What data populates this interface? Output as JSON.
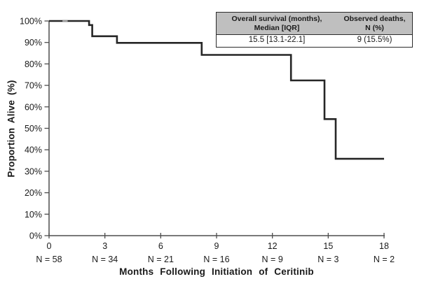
{
  "colors": {
    "curve": "#262626",
    "axis": "#4d4d4d",
    "text": "#1a1a1a",
    "censor": "#9a9a9a",
    "table_header_bg": "#bfbfbf",
    "table_border": "#2b2b2b"
  },
  "chart_data": {
    "type": "line",
    "subtype": "kaplan-meier-step",
    "title": "",
    "xlabel": "Months Following Initiation of Ceritinib",
    "ylabel": "Proportion Alive (%)",
    "xlim": [
      0,
      18
    ],
    "ylim": [
      0,
      100
    ],
    "grid": false,
    "x_ticks": [
      {
        "v": 0,
        "label": "0"
      },
      {
        "v": 3,
        "label": "3"
      },
      {
        "v": 6,
        "label": "6"
      },
      {
        "v": 9,
        "label": "9"
      },
      {
        "v": 12,
        "label": "12"
      },
      {
        "v": 15,
        "label": "15"
      },
      {
        "v": 18,
        "label": "18"
      }
    ],
    "y_ticks": [
      {
        "v": 0,
        "label": "0%"
      },
      {
        "v": 10,
        "label": "10%"
      },
      {
        "v": 20,
        "label": "20%"
      },
      {
        "v": 30,
        "label": "30%"
      },
      {
        "v": 40,
        "label": "40%"
      },
      {
        "v": 50,
        "label": "50%"
      },
      {
        "v": 60,
        "label": "60%"
      },
      {
        "v": 70,
        "label": "70%"
      },
      {
        "v": 80,
        "label": "80%"
      },
      {
        "v": 90,
        "label": "90%"
      },
      {
        "v": 100,
        "label": "100%"
      }
    ],
    "series": [
      {
        "name": "Overall survival",
        "points": [
          [
            0,
            100
          ],
          [
            2.15,
            100
          ],
          [
            2.15,
            98.1
          ],
          [
            2.32,
            98.1
          ],
          [
            2.32,
            92.9
          ],
          [
            3.65,
            92.9
          ],
          [
            3.65,
            89.8
          ],
          [
            8.2,
            89.8
          ],
          [
            8.2,
            84.2
          ],
          [
            13.0,
            84.2
          ],
          [
            13.0,
            72.3
          ],
          [
            14.8,
            72.3
          ],
          [
            14.8,
            54.3
          ],
          [
            15.4,
            54.3
          ],
          [
            15.4,
            35.8
          ],
          [
            18,
            35.8
          ]
        ]
      }
    ],
    "censor_marks": [
      {
        "t1": 0.72,
        "t2": 1.0,
        "s": 100
      }
    ],
    "at_risk": {
      "times": [
        0,
        3,
        6,
        9,
        12,
        15,
        18
      ],
      "labels": [
        "N = 58",
        "N = 34",
        "N = 21",
        "N = 16",
        "N = 9",
        "N = 3",
        "N = 2"
      ]
    }
  },
  "table": {
    "header": [
      {
        "line1": "Overall survival (months),",
        "line2": "Median [IQR]"
      },
      {
        "line1": "Observed deaths,",
        "line2": "N (%)"
      }
    ],
    "row": [
      "15.5 [13.1-22.1]",
      "9 (15.5%)"
    ]
  }
}
